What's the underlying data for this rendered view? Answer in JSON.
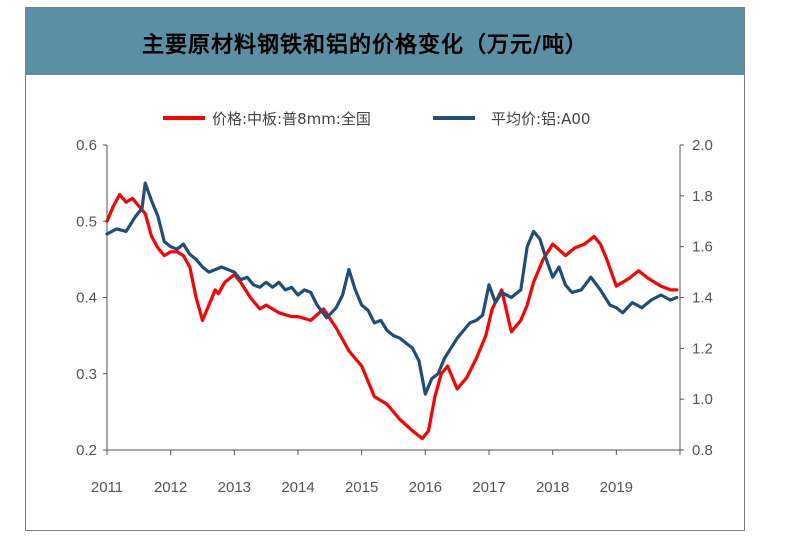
{
  "chart_data": {
    "type": "line",
    "title": "主要原材料钢铁和铝的价格变化（万元/吨）",
    "x_ticks": [
      "2011",
      "2012",
      "2013",
      "2014",
      "2015",
      "2016",
      "2017",
      "2018",
      "2019"
    ],
    "left_axis": {
      "ylim": [
        0.2,
        0.6
      ],
      "ticks": [
        "0.2",
        "0.3",
        "0.4",
        "0.5",
        "0.6"
      ]
    },
    "right_axis": {
      "ylim": [
        0.8,
        2.0
      ],
      "ticks": [
        "0.8",
        "1.0",
        "1.2",
        "1.4",
        "1.6",
        "1.8",
        "2.0"
      ]
    },
    "legend_position": "top",
    "grid": false,
    "series": [
      {
        "name": "价格:中板:普8mm:全国",
        "color": "#ff0000",
        "axis": "left",
        "x": [
          2011.0,
          2011.1,
          2011.2,
          2011.3,
          2011.4,
          2011.5,
          2011.6,
          2011.7,
          2011.8,
          2011.9,
          2012.0,
          2012.1,
          2012.2,
          2012.3,
          2012.4,
          2012.5,
          2012.6,
          2012.7,
          2012.75,
          2012.85,
          2013.0,
          2013.1,
          2013.25,
          2013.4,
          2013.5,
          2013.7,
          2013.9,
          2014.0,
          2014.2,
          2014.4,
          2014.6,
          2014.8,
          2015.0,
          2015.2,
          2015.4,
          2015.6,
          2015.8,
          2015.95,
          2016.05,
          2016.15,
          2016.25,
          2016.35,
          2016.5,
          2016.65,
          2016.8,
          2016.95,
          2017.05,
          2017.2,
          2017.35,
          2017.5,
          2017.6,
          2017.7,
          2017.85,
          2018.0,
          2018.2,
          2018.35,
          2018.5,
          2018.65,
          2018.75,
          2018.85,
          2019.0,
          2019.2,
          2019.35,
          2019.5,
          2019.7,
          2019.85,
          2019.95
        ],
        "values": [
          0.5,
          0.52,
          0.535,
          0.525,
          0.53,
          0.52,
          0.51,
          0.48,
          0.465,
          0.455,
          0.46,
          0.46,
          0.455,
          0.44,
          0.4,
          0.37,
          0.39,
          0.41,
          0.405,
          0.42,
          0.43,
          0.42,
          0.4,
          0.385,
          0.39,
          0.38,
          0.375,
          0.375,
          0.37,
          0.385,
          0.36,
          0.33,
          0.31,
          0.27,
          0.26,
          0.24,
          0.225,
          0.215,
          0.225,
          0.27,
          0.3,
          0.31,
          0.28,
          0.295,
          0.32,
          0.35,
          0.385,
          0.41,
          0.355,
          0.37,
          0.39,
          0.42,
          0.45,
          0.47,
          0.455,
          0.465,
          0.47,
          0.48,
          0.47,
          0.45,
          0.415,
          0.425,
          0.435,
          0.425,
          0.415,
          0.41,
          0.41
        ]
      },
      {
        "name": "平均价:铝:A00",
        "color": "#1f4e79",
        "axis": "right",
        "x": [
          2011.0,
          2011.15,
          2011.3,
          2011.45,
          2011.55,
          2011.6,
          2011.7,
          2011.8,
          2011.9,
          2012.0,
          2012.1,
          2012.2,
          2012.3,
          2012.4,
          2012.5,
          2012.6,
          2012.8,
          2013.0,
          2013.1,
          2013.2,
          2013.3,
          2013.4,
          2013.5,
          2013.6,
          2013.7,
          2013.8,
          2013.9,
          2014.0,
          2014.1,
          2014.2,
          2014.3,
          2014.45,
          2014.6,
          2014.7,
          2014.8,
          2014.9,
          2015.0,
          2015.1,
          2015.2,
          2015.3,
          2015.4,
          2015.5,
          2015.6,
          2015.7,
          2015.8,
          2015.9,
          2016.0,
          2016.1,
          2016.2,
          2016.3,
          2016.4,
          2016.5,
          2016.6,
          2016.7,
          2016.8,
          2016.9,
          2017.0,
          2017.1,
          2017.2,
          2017.35,
          2017.5,
          2017.6,
          2017.7,
          2017.8,
          2017.9,
          2018.0,
          2018.1,
          2018.2,
          2018.3,
          2018.45,
          2018.6,
          2018.75,
          2018.9,
          2019.0,
          2019.1,
          2019.25,
          2019.4,
          2019.55,
          2019.7,
          2019.85,
          2019.95
        ],
        "values": [
          1.65,
          1.67,
          1.66,
          1.72,
          1.75,
          1.85,
          1.78,
          1.72,
          1.62,
          1.6,
          1.59,
          1.61,
          1.57,
          1.55,
          1.52,
          1.5,
          1.52,
          1.5,
          1.47,
          1.48,
          1.45,
          1.44,
          1.46,
          1.44,
          1.46,
          1.43,
          1.44,
          1.41,
          1.43,
          1.42,
          1.37,
          1.32,
          1.36,
          1.41,
          1.51,
          1.43,
          1.37,
          1.35,
          1.3,
          1.31,
          1.27,
          1.25,
          1.24,
          1.22,
          1.2,
          1.15,
          1.02,
          1.08,
          1.1,
          1.16,
          1.2,
          1.24,
          1.27,
          1.3,
          1.31,
          1.33,
          1.45,
          1.38,
          1.42,
          1.4,
          1.43,
          1.6,
          1.66,
          1.63,
          1.55,
          1.48,
          1.52,
          1.45,
          1.42,
          1.43,
          1.48,
          1.43,
          1.37,
          1.36,
          1.34,
          1.38,
          1.36,
          1.39,
          1.41,
          1.39,
          1.4
        ]
      }
    ]
  }
}
